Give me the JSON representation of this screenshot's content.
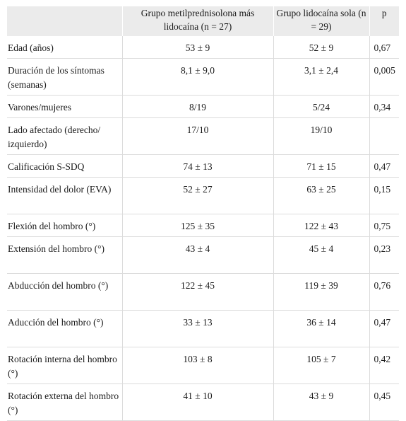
{
  "table": {
    "headers": [
      "",
      "Grupo metilprednisolona más lidocaína (n = 27)",
      "Grupo lidocaína sola (n = 29)",
      "p"
    ],
    "rows": [
      {
        "label": "Edad (años)",
        "g1": "53 ± 9",
        "g2": "52 ± 9",
        "p": "0,67"
      },
      {
        "label": "Duración de los síntomas (semanas)",
        "g1": "8,1 ± 9,0",
        "g2": "3,1 ± 2,4",
        "p": "0,005"
      },
      {
        "label": "Varones/mujeres",
        "g1": "8/19",
        "g2": "5/24",
        "p": "0,34"
      },
      {
        "label": "Lado afectado (derecho/ izquierdo)",
        "g1": "17/10",
        "g2": "19/10",
        "p": ""
      },
      {
        "label": "Calificación S-SDQ",
        "g1": "74 ± 13",
        "g2": "71 ± 15",
        "p": "0,47"
      },
      {
        "label": "Intensidad del dolor (EVA)",
        "g1": "52 ± 27",
        "g2": "63 ± 25",
        "p": "0,15"
      },
      {
        "label": "Flexión del hombro (°)",
        "g1": "125 ± 35",
        "g2": "122 ± 43",
        "p": "0,75"
      },
      {
        "label": "Extensión del hombro (°)",
        "g1": "43 ± 4",
        "g2": "45 ± 4",
        "p": "0,23"
      },
      {
        "label": "Abducción del hombro (°)",
        "g1": "122 ± 45",
        "g2": "119 ± 39",
        "p": "0,76"
      },
      {
        "label": "Aducción del hombro (°)",
        "g1": "33 ± 13",
        "g2": "36 ± 14",
        "p": "0,47"
      },
      {
        "label": "Rotación interna del hombro (°)",
        "g1": "103 ± 8",
        "g2": "105 ± 7",
        "p": "0,42"
      },
      {
        "label": "Rotación externa del hombro (°)",
        "g1": "41 ± 10",
        "g2": "43 ± 9",
        "p": "0,45"
      }
    ]
  }
}
